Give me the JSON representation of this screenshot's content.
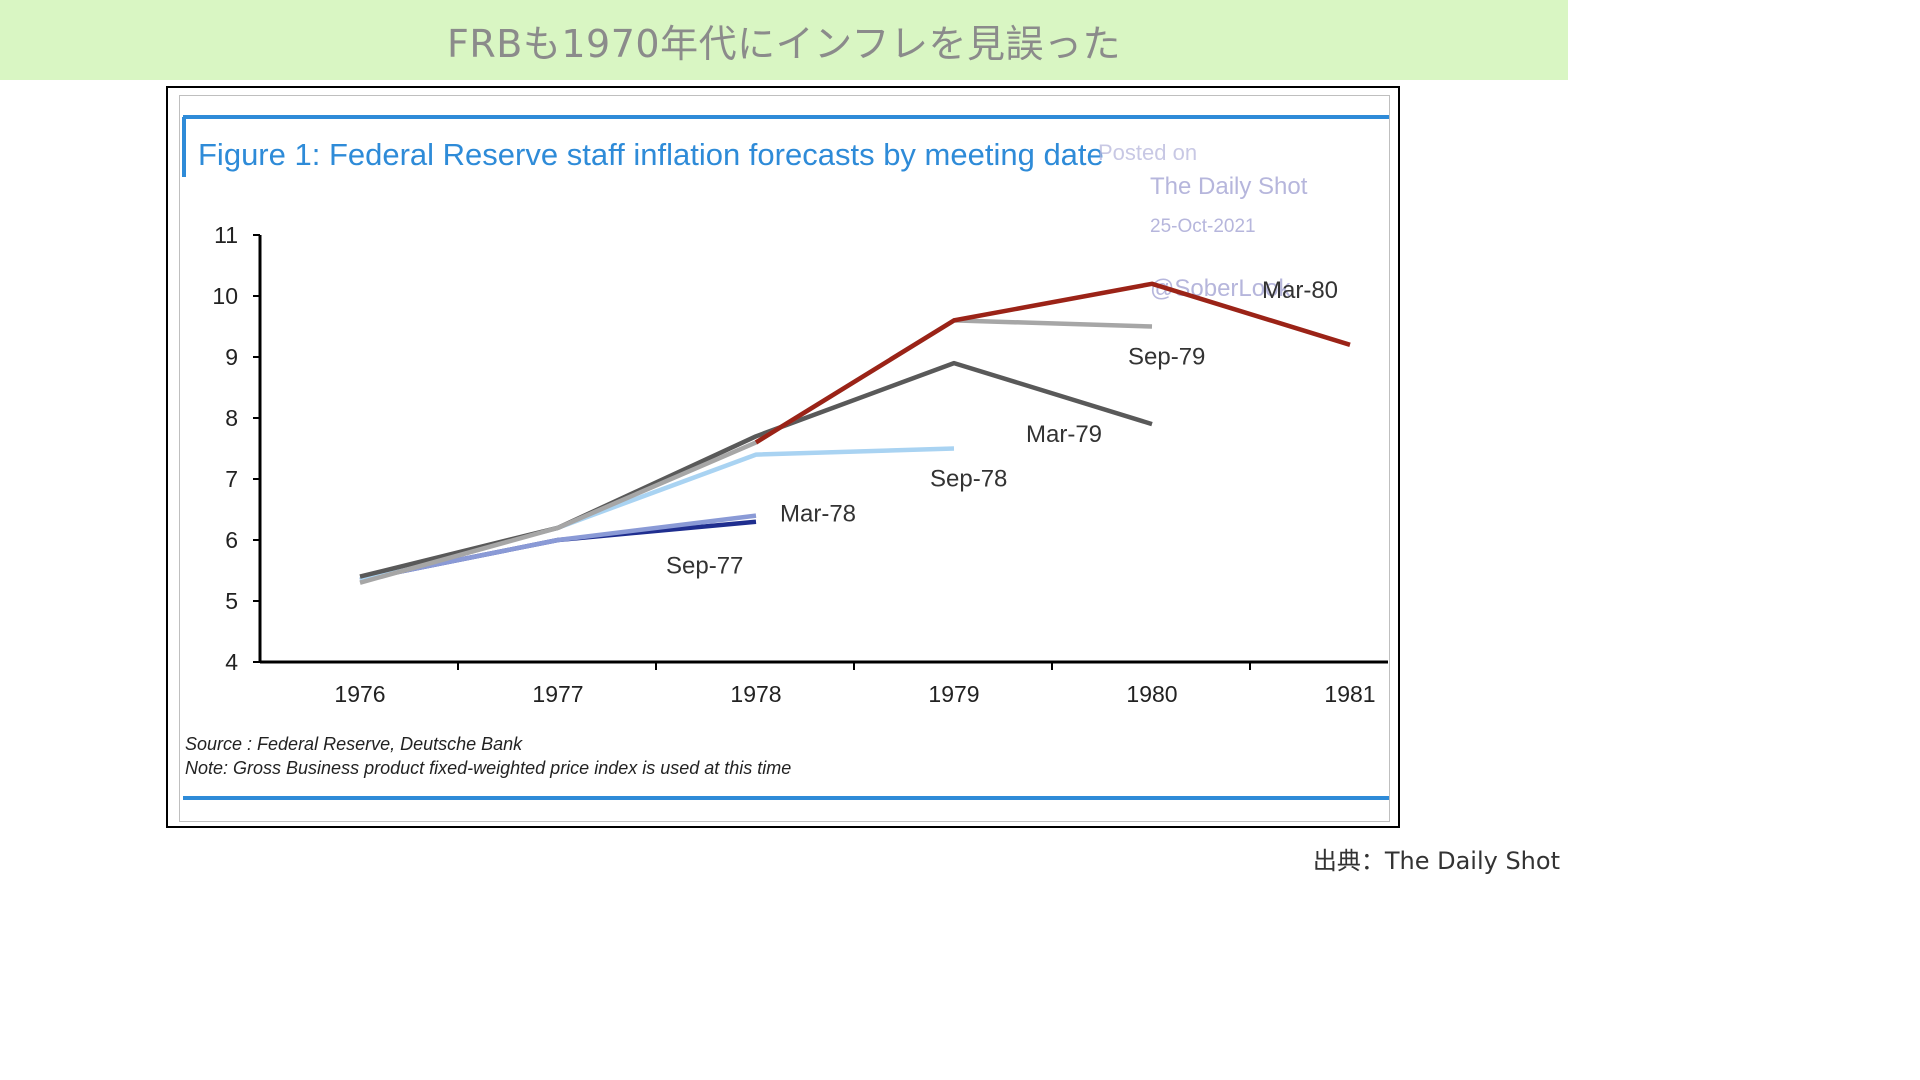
{
  "header": {
    "title": "FRBも1970年代にインフレを見誤った"
  },
  "footer": {
    "credit": "出典：The Daily Shot"
  },
  "chart_data": {
    "type": "line",
    "title": "Figure 1: Federal Reserve staff inflation forecasts by meeting date",
    "xlabel": "",
    "ylabel": "",
    "xlim": [
      1976,
      1981
    ],
    "ylim": [
      4,
      11
    ],
    "x_ticks": [
      "1976",
      "1977",
      "1978",
      "1979",
      "1980",
      "1981"
    ],
    "y_ticks": [
      "11",
      "10",
      "9",
      "8",
      "7",
      "6",
      "5",
      "4"
    ],
    "grid": false,
    "series": [
      {
        "name": "Sep-77",
        "color": "#1f2e8f",
        "x": [
          1976,
          1977,
          1978
        ],
        "y": [
          5.35,
          6.0,
          6.3
        ]
      },
      {
        "name": "Mar-78",
        "color": "#8a9ad6",
        "x": [
          1976,
          1977,
          1978
        ],
        "y": [
          5.35,
          6.0,
          6.4
        ]
      },
      {
        "name": "Sep-78",
        "color": "#a9d3f2",
        "x": [
          1976,
          1977,
          1978,
          1979
        ],
        "y": [
          5.35,
          6.2,
          7.4,
          7.5
        ]
      },
      {
        "name": "Mar-79",
        "color": "#595959",
        "x": [
          1976,
          1977,
          1978,
          1979,
          1980
        ],
        "y": [
          5.4,
          6.2,
          7.7,
          8.9,
          7.9
        ]
      },
      {
        "name": "Sep-79",
        "color": "#a6a6a6",
        "x": [
          1976,
          1977,
          1978,
          1979,
          1980
        ],
        "y": [
          5.3,
          6.2,
          7.6,
          9.6,
          9.5
        ]
      },
      {
        "name": "Mar-80",
        "color": "#9b2317",
        "x": [
          1978,
          1979,
          1980,
          1981
        ],
        "y": [
          7.6,
          9.6,
          10.2,
          9.2
        ]
      }
    ],
    "source": "Source : Federal Reserve, Deutsche Bank",
    "note": "Note: Gross Business product fixed-weighted price index is used at this time",
    "watermark": [
      "Posted on",
      "The Daily Shot",
      "25-Oct-2021",
      "@SoberLook"
    ]
  }
}
